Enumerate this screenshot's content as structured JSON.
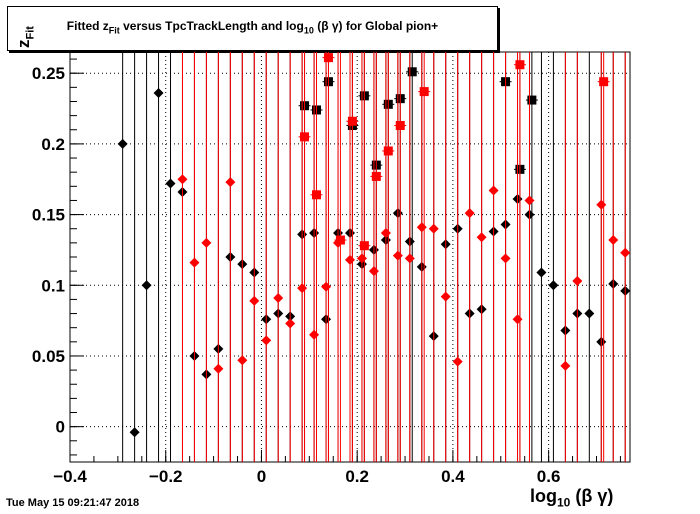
{
  "title": {
    "prefix": "Fitted  z",
    "sub1": "Fit",
    "middle": "  versus TpcTrackLength and log",
    "sub2": "10",
    "suffix": " (β γ) for Global pion+"
  },
  "timestamp": "Tue May 15 09:21:47 2018",
  "chart_data": {
    "type": "scatter",
    "xlabel": "log10 (β γ)",
    "ylabel": "z_Fit",
    "xlim": [
      -0.4,
      0.77
    ],
    "ylim": [
      -0.025,
      0.265
    ],
    "x_ticks": [
      "−0.4",
      "−0.2",
      "0",
      "0.2",
      "0.4",
      "0.6"
    ],
    "x_tick_values": [
      -0.4,
      -0.2,
      0,
      0.2,
      0.4,
      0.6
    ],
    "y_ticks": [
      "0",
      "0.05",
      "0.1",
      "0.15",
      "0.2",
      "0.25"
    ],
    "y_tick_values": [
      0,
      0.05,
      0.1,
      0.15,
      0.2,
      0.25
    ],
    "grid": true,
    "series": [
      {
        "color": "#000000",
        "marker_style": "diamond-and-square",
        "x": [
          -0.29,
          -0.265,
          -0.24,
          -0.215,
          -0.19,
          -0.165,
          -0.14,
          -0.115,
          -0.09,
          -0.065,
          -0.04,
          -0.015,
          0.01,
          0.035,
          0.06,
          0.085,
          0.11,
          0.135,
          0.16,
          0.185,
          0.21,
          0.235,
          0.26,
          0.285,
          0.31,
          0.335,
          0.36,
          0.385,
          0.41,
          0.435,
          0.46,
          0.485,
          0.51,
          0.535,
          0.56,
          0.585,
          0.61,
          0.635,
          0.66,
          0.685,
          0.71,
          0.735,
          0.76,
          0.09,
          0.115,
          0.14,
          0.19,
          0.215,
          0.24,
          0.265,
          0.29,
          0.315,
          0.51,
          0.54,
          0.565
        ],
        "y": [
          0.2,
          -0.004,
          0.1,
          0.236,
          0.172,
          0.166,
          0.05,
          0.037,
          0.055,
          0.12,
          0.115,
          0.109,
          0.076,
          0.08,
          0.078,
          0.136,
          0.137,
          0.076,
          0.137,
          0.137,
          0.115,
          0.125,
          0.132,
          0.151,
          0.131,
          0.113,
          0.064,
          0.129,
          0.14,
          0.08,
          0.083,
          0.138,
          0.143,
          0.161,
          0.15,
          0.109,
          0.1,
          0.068,
          0.08,
          0.08,
          0.06,
          0.101,
          0.096,
          0.227,
          0.224,
          0.244,
          0.213,
          0.234,
          0.185,
          0.228,
          0.232,
          0.251,
          0.244,
          0.182,
          0.231
        ],
        "squares_from_index": 43
      },
      {
        "color": "#ff0000",
        "marker_style": "diamond-and-square",
        "x": [
          -0.165,
          -0.14,
          -0.115,
          -0.09,
          -0.065,
          -0.04,
          -0.015,
          0.01,
          0.035,
          0.06,
          0.085,
          0.11,
          0.135,
          0.16,
          0.185,
          0.21,
          0.235,
          0.26,
          0.285,
          0.31,
          0.335,
          0.36,
          0.385,
          0.41,
          0.435,
          0.46,
          0.485,
          0.51,
          0.535,
          0.56,
          0.635,
          0.66,
          0.71,
          0.735,
          0.76,
          0.09,
          0.115,
          0.14,
          0.165,
          0.19,
          0.215,
          0.24,
          0.265,
          0.29,
          0.34,
          0.54,
          0.715
        ],
        "y": [
          0.175,
          0.116,
          0.13,
          0.041,
          0.173,
          0.047,
          0.089,
          0.061,
          0.091,
          0.073,
          0.098,
          0.065,
          0.099,
          0.13,
          0.118,
          0.119,
          0.11,
          0.137,
          0.121,
          0.119,
          0.141,
          0.14,
          0.092,
          0.046,
          0.151,
          0.134,
          0.167,
          0.119,
          0.076,
          0.16,
          0.043,
          0.103,
          0.157,
          0.132,
          0.123,
          0.205,
          0.164,
          0.261,
          0.132,
          0.216,
          0.128,
          0.177,
          0.195,
          0.213,
          0.237,
          0.256,
          0.244
        ],
        "squares_from_index": 35
      }
    ]
  }
}
